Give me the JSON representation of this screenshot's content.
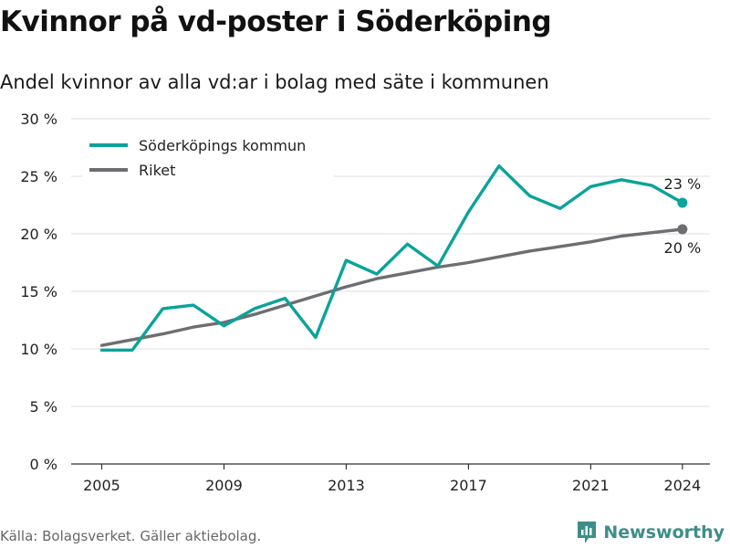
{
  "title": "Kvinnor på vd-poster i Söderköping",
  "subtitle": "Andel kvinnor av alla vd:ar i bolag med säte i kommunen",
  "source": "Källa: Bolagsverket. Gäller aktiebolag.",
  "brand": "Newsworthy",
  "colors": {
    "municipality": "#0aa39a",
    "country": "#6e6d72",
    "grid": "#dcdcdc",
    "axis": "#333333"
  },
  "chart_data": {
    "type": "line",
    "x": [
      2005,
      2006,
      2007,
      2008,
      2009,
      2010,
      2011,
      2012,
      2013,
      2014,
      2015,
      2016,
      2017,
      2018,
      2019,
      2020,
      2021,
      2022,
      2023,
      2024
    ],
    "x_ticks": [
      2005,
      2009,
      2013,
      2017,
      2021,
      2024
    ],
    "x_tick_labels": [
      "2005",
      "2009",
      "2013",
      "2017",
      "2021",
      "2024"
    ],
    "ylim": [
      0,
      30
    ],
    "y_ticks": [
      0,
      5,
      10,
      15,
      20,
      25,
      30
    ],
    "y_tick_labels": [
      "0 %",
      "5 %",
      "10 %",
      "15 %",
      "20 %",
      "25 %",
      "30 %"
    ],
    "grid": true,
    "legend_position": "top-left",
    "series": [
      {
        "name": "Söderköpings kommun",
        "values": [
          9.9,
          9.9,
          13.5,
          13.8,
          12.0,
          13.5,
          14.4,
          11.0,
          17.7,
          16.5,
          19.1,
          17.2,
          21.9,
          25.9,
          23.3,
          22.2,
          24.1,
          24.7,
          24.2,
          22.7
        ],
        "end_label": "23 %"
      },
      {
        "name": "Riket",
        "values": [
          10.3,
          10.8,
          11.3,
          11.9,
          12.3,
          13.0,
          13.8,
          14.6,
          15.4,
          16.1,
          16.6,
          17.1,
          17.5,
          18.0,
          18.5,
          18.9,
          19.3,
          19.8,
          20.1,
          20.4
        ],
        "end_label": "20 %"
      }
    ]
  }
}
